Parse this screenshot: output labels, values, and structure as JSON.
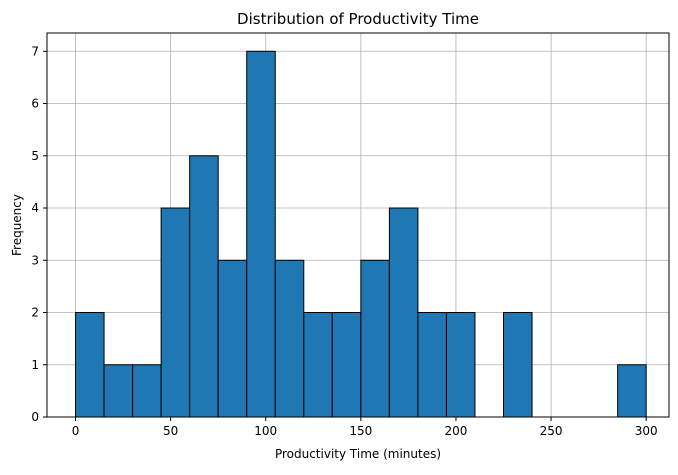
{
  "chart_data": {
    "type": "bar",
    "title": "Distribution of Productivity Time",
    "xlabel": "Productivity Time (minutes)",
    "ylabel": "Frequency",
    "xlim": [
      -15,
      312
    ],
    "ylim": [
      0,
      7.35
    ],
    "grid": true,
    "bar_color": "#1f77b4",
    "edge_color": "#000000",
    "x_ticks": [
      0,
      50,
      100,
      150,
      200,
      250,
      300
    ],
    "y_ticks": [
      0,
      1,
      2,
      3,
      4,
      5,
      6,
      7
    ],
    "bins": [
      {
        "start": 0,
        "end": 15,
        "count": 2
      },
      {
        "start": 15,
        "end": 30,
        "count": 1
      },
      {
        "start": 30,
        "end": 45,
        "count": 1
      },
      {
        "start": 45,
        "end": 60,
        "count": 4
      },
      {
        "start": 60,
        "end": 75,
        "count": 5
      },
      {
        "start": 75,
        "end": 90,
        "count": 3
      },
      {
        "start": 90,
        "end": 105,
        "count": 7
      },
      {
        "start": 105,
        "end": 120,
        "count": 3
      },
      {
        "start": 120,
        "end": 135,
        "count": 2
      },
      {
        "start": 135,
        "end": 150,
        "count": 2
      },
      {
        "start": 150,
        "end": 165,
        "count": 3
      },
      {
        "start": 165,
        "end": 180,
        "count": 4
      },
      {
        "start": 180,
        "end": 195,
        "count": 2
      },
      {
        "start": 195,
        "end": 210,
        "count": 2
      },
      {
        "start": 210,
        "end": 225,
        "count": 0
      },
      {
        "start": 225,
        "end": 240,
        "count": 2
      },
      {
        "start": 240,
        "end": 255,
        "count": 0
      },
      {
        "start": 255,
        "end": 270,
        "count": 0
      },
      {
        "start": 270,
        "end": 285,
        "count": 0
      },
      {
        "start": 285,
        "end": 300,
        "count": 1
      }
    ]
  }
}
